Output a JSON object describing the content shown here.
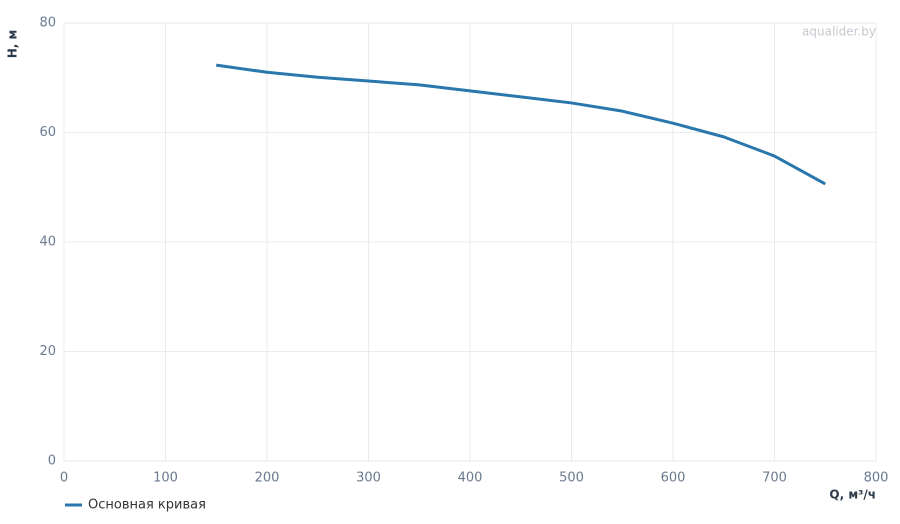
{
  "chart_data": {
    "type": "line",
    "x_label": "Q, м³/ч",
    "y_label": "H, м",
    "watermark": "aqualider.by",
    "x": [
      150,
      200,
      250,
      300,
      350,
      400,
      450,
      500,
      550,
      600,
      650,
      700,
      750
    ],
    "series": [
      {
        "name": "Основная кривая",
        "color": "#2a77ad",
        "values": [
          72.3,
          71.0,
          70.1,
          69.4,
          68.7,
          67.6,
          66.5,
          65.4,
          63.9,
          61.7,
          59.2,
          55.7,
          50.6
        ]
      }
    ],
    "xlim": [
      0,
      800
    ],
    "xticks": [
      0,
      100,
      200,
      300,
      400,
      500,
      600,
      700,
      800
    ],
    "ylim": [
      0,
      80
    ],
    "yticks": [
      0,
      20,
      40,
      60,
      80
    ],
    "grid": true
  }
}
